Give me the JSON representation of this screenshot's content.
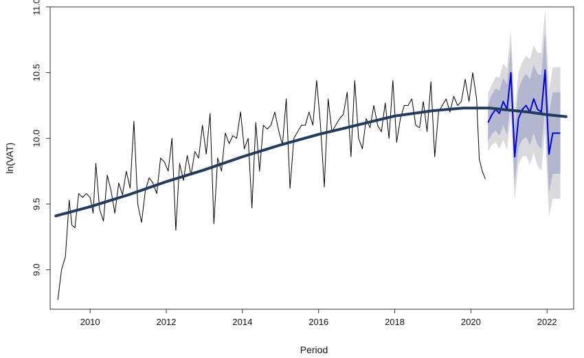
{
  "chart_data": {
    "type": "line",
    "title": "",
    "xlabel": "Period",
    "ylabel": "ln(VAT)",
    "xlim": [
      2008.95,
      2022.7
    ],
    "ylim": [
      8.7,
      11.0
    ],
    "x_ticks": [
      2010,
      2012,
      2014,
      2016,
      2018,
      2020,
      2022
    ],
    "x_tick_labels": [
      "2010",
      "2012",
      "2014",
      "2016",
      "2018",
      "2020",
      "2022"
    ],
    "y_ticks": [
      9.0,
      9.5,
      10.0,
      10.5,
      11.0
    ],
    "y_tick_labels": [
      "9.0",
      "9.5",
      "10.0",
      "10.5",
      "11.0"
    ],
    "grid": false,
    "legend": "none",
    "colors": {
      "observed": "#000000",
      "trend": "#1f3b5f",
      "forecast": "#0000dd",
      "band_95": "#d9d9de",
      "band_80": "#b3b6cf",
      "frame": "#333333"
    },
    "series": [
      {
        "role": "observed",
        "x": [
          2009.15,
          2009.25,
          2009.35,
          2009.45,
          2009.52,
          2009.6,
          2009.7,
          2009.8,
          2009.9,
          2010.0,
          2010.08,
          2010.15,
          2010.25,
          2010.35,
          2010.45,
          2010.55,
          2010.65,
          2010.75,
          2010.85,
          2010.95,
          2011.05,
          2011.15,
          2011.25,
          2011.35,
          2011.45,
          2011.55,
          2011.65,
          2011.75,
          2011.85,
          2011.95,
          2012.05,
          2012.15,
          2012.25,
          2012.35,
          2012.45,
          2012.55,
          2012.65,
          2012.75,
          2012.85,
          2012.95,
          2013.05,
          2013.15,
          2013.25,
          2013.35,
          2013.45,
          2013.55,
          2013.65,
          2013.75,
          2013.85,
          2013.95,
          2014.05,
          2014.15,
          2014.25,
          2014.35,
          2014.45,
          2014.55,
          2014.65,
          2014.75,
          2014.85,
          2014.95,
          2015.05,
          2015.15,
          2015.25,
          2015.35,
          2015.45,
          2015.55,
          2015.65,
          2015.75,
          2015.85,
          2015.95,
          2016.05,
          2016.15,
          2016.25,
          2016.35,
          2016.45,
          2016.55,
          2016.65,
          2016.75,
          2016.85,
          2016.95,
          2017.05,
          2017.15,
          2017.25,
          2017.35,
          2017.45,
          2017.55,
          2017.65,
          2017.75,
          2017.85,
          2017.95,
          2018.05,
          2018.15,
          2018.25,
          2018.35,
          2018.45,
          2018.55,
          2018.65,
          2018.75,
          2018.85,
          2018.95,
          2019.05,
          2019.15,
          2019.25,
          2019.35,
          2019.45,
          2019.55,
          2019.65,
          2019.75,
          2019.85,
          2019.95,
          2020.05,
          2020.15,
          2020.22,
          2020.3,
          2020.38
        ],
        "values": [
          8.77,
          9.0,
          9.1,
          9.53,
          9.34,
          9.32,
          9.58,
          9.55,
          9.58,
          9.55,
          9.43,
          9.81,
          9.46,
          9.37,
          9.72,
          9.6,
          9.43,
          9.66,
          9.57,
          9.75,
          9.62,
          10.13,
          9.5,
          9.36,
          9.6,
          9.7,
          9.66,
          9.58,
          9.85,
          9.82,
          9.75,
          10.0,
          9.3,
          9.81,
          9.68,
          9.87,
          9.72,
          9.9,
          9.85,
          10.1,
          9.88,
          10.19,
          9.35,
          9.85,
          9.75,
          10.04,
          9.96,
          10.02,
          10.0,
          10.2,
          9.92,
          10.0,
          9.47,
          10.12,
          9.75,
          10.1,
          10.07,
          10.1,
          10.2,
          10.06,
          9.95,
          10.3,
          9.62,
          10.0,
          10.05,
          10.1,
          10.1,
          10.2,
          10.1,
          10.44,
          10.1,
          9.63,
          10.3,
          10.05,
          10.1,
          10.15,
          10.18,
          10.35,
          9.86,
          10.44,
          10.0,
          9.92,
          10.15,
          10.08,
          10.25,
          10.1,
          10.05,
          10.27,
          10.0,
          10.44,
          9.97,
          10.15,
          10.25,
          10.25,
          10.3,
          10.1,
          10.08,
          10.28,
          10.05,
          10.43,
          9.86,
          10.2,
          10.25,
          10.3,
          10.2,
          10.32,
          10.25,
          10.28,
          10.45,
          10.28,
          10.5,
          10.3,
          9.84,
          9.75,
          9.69
        ]
      },
      {
        "role": "trend",
        "x": [
          2009.1,
          2010.0,
          2011.0,
          2012.0,
          2013.0,
          2014.0,
          2015.0,
          2016.0,
          2017.0,
          2018.0,
          2019.0,
          2019.8,
          2020.5,
          2021.0,
          2021.5,
          2022.0,
          2022.5
        ],
        "values": [
          9.41,
          9.48,
          9.57,
          9.67,
          9.76,
          9.86,
          9.95,
          10.03,
          10.1,
          10.17,
          10.21,
          10.23,
          10.23,
          10.215,
          10.2,
          10.18,
          10.165
        ]
      },
      {
        "role": "forecast",
        "x": [
          2020.45,
          2020.55,
          2020.65,
          2020.75,
          2020.85,
          2020.95,
          2021.05,
          2021.15,
          2021.25,
          2021.35,
          2021.45,
          2021.55,
          2021.65,
          2021.75,
          2021.85,
          2021.95,
          2022.05,
          2022.15,
          2022.25,
          2022.35
        ],
        "values": [
          10.12,
          10.18,
          10.22,
          10.19,
          10.28,
          10.22,
          10.5,
          9.86,
          10.15,
          10.22,
          10.25,
          10.2,
          10.3,
          10.22,
          10.2,
          10.52,
          9.88,
          10.04,
          10.04,
          10.04
        ],
        "lower_80": [
          9.98,
          10.03,
          10.06,
          10.02,
          10.1,
          10.03,
          10.3,
          9.65,
          9.93,
          9.99,
          10.01,
          9.95,
          10.04,
          9.95,
          9.92,
          10.23,
          9.58,
          9.73,
          9.73,
          9.73
        ],
        "upper_80": [
          10.26,
          10.33,
          10.38,
          10.36,
          10.46,
          10.41,
          10.7,
          10.07,
          10.37,
          10.45,
          10.49,
          10.45,
          10.56,
          10.49,
          10.48,
          10.81,
          10.18,
          10.35,
          10.35,
          10.35
        ],
        "lower_95": [
          9.9,
          9.95,
          9.97,
          9.92,
          9.99,
          9.91,
          10.18,
          9.53,
          9.8,
          9.86,
          9.87,
          9.8,
          9.89,
          9.79,
          9.75,
          10.06,
          9.4,
          9.54,
          9.54,
          9.54
        ],
        "upper_95": [
          10.34,
          10.41,
          10.47,
          10.46,
          10.57,
          10.53,
          10.82,
          10.19,
          10.5,
          10.58,
          10.63,
          10.6,
          10.71,
          10.65,
          10.65,
          10.98,
          10.36,
          10.54,
          10.54,
          10.54
        ]
      }
    ]
  }
}
